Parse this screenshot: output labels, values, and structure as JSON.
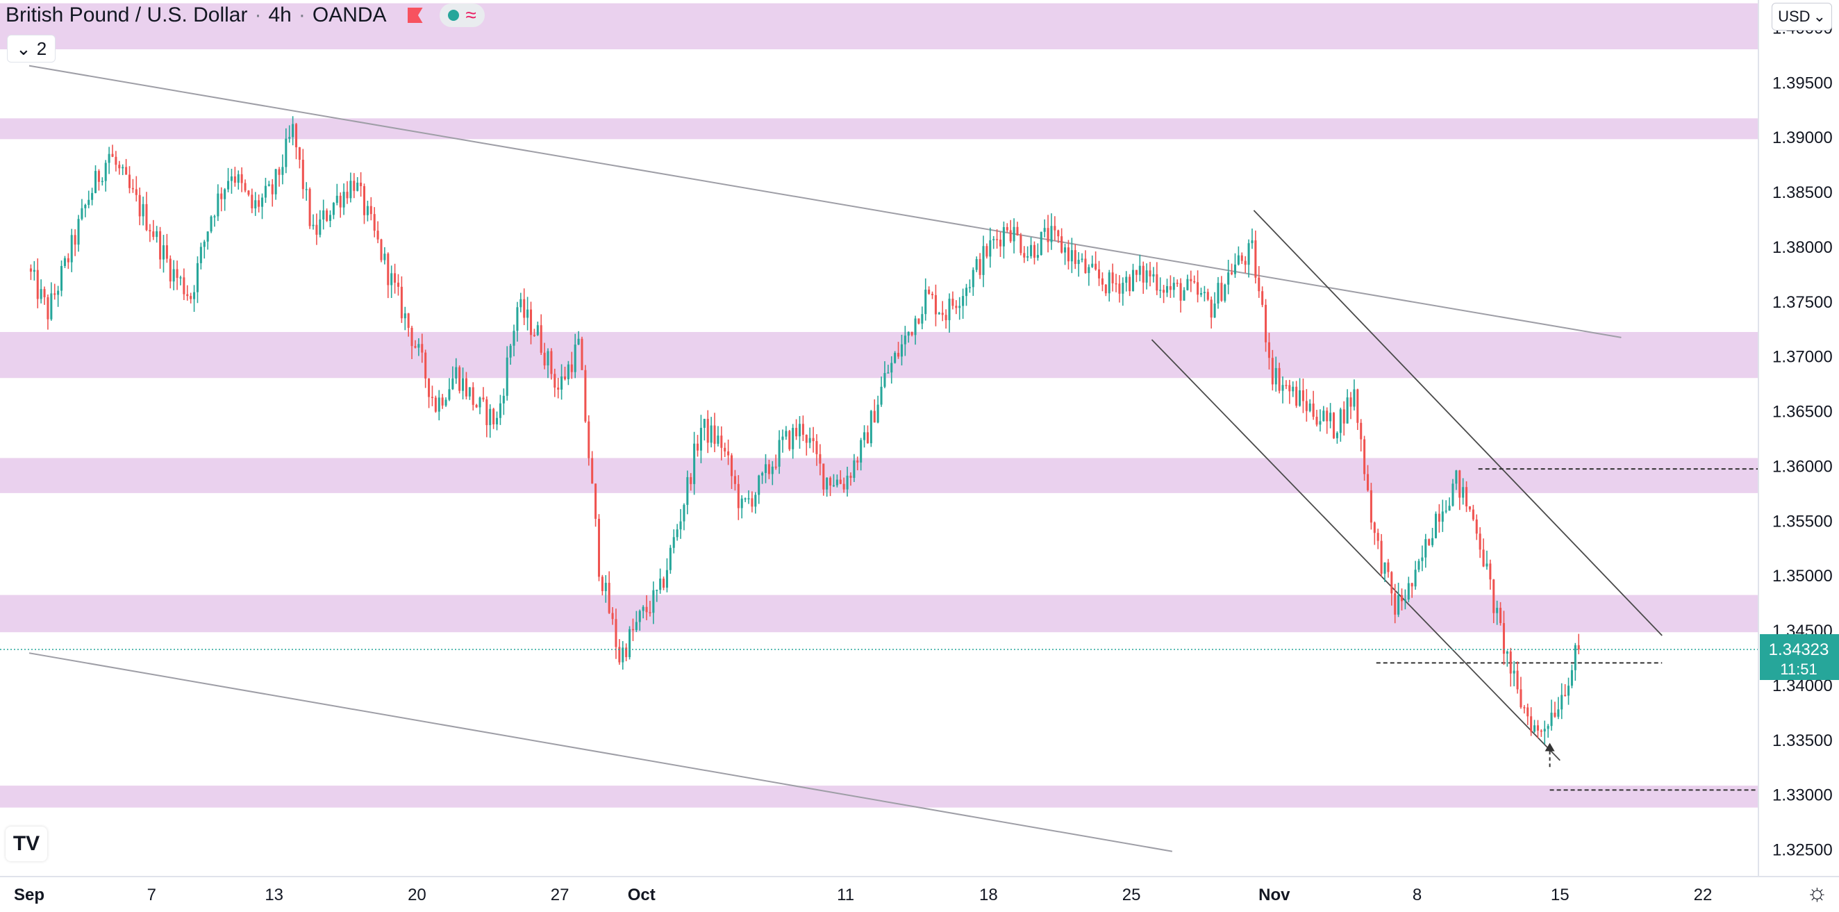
{
  "header": {
    "symbol": "British Pound / U.S. Dollar",
    "interval": "4h",
    "exchange": "OANDA",
    "separator": "·",
    "indicator_count": "2",
    "currency": "USD"
  },
  "colors": {
    "up": "#26a69a",
    "down": "#ef5350",
    "zone": "#e1bee7",
    "trendline": "#9e9ea6",
    "channel": "#4a4a4a",
    "price_line": "#26a69a"
  },
  "icons": [
    "chevron-down-icon",
    "flag-icon",
    "status-dot-icon",
    "wave-icon",
    "tradingview-logo-icon",
    "settings-gear-icon"
  ],
  "chart_data": {
    "type": "candlestick",
    "yaxis": {
      "ylim": [
        1.3225,
        1.4025
      ],
      "ticks": [
        1.4,
        1.395,
        1.39,
        1.385,
        1.38,
        1.375,
        1.37,
        1.365,
        1.36,
        1.355,
        1.35,
        1.345,
        1.34,
        1.335,
        1.33,
        1.325
      ],
      "tick_labels": [
        "1.40000",
        "1.39500",
        "1.39000",
        "1.38500",
        "1.38000",
        "1.37500",
        "1.37000",
        "1.36500",
        "1.36000",
        "1.35500",
        "1.35000",
        "1.34500",
        "1.34000",
        "1.33500",
        "1.33000",
        "1.32500"
      ]
    },
    "xaxis": {
      "xlim": [
        1,
        83
      ],
      "ticks": [
        {
          "day": 1,
          "label": "Sep"
        },
        {
          "day": 7,
          "label": "7"
        },
        {
          "day": 13,
          "label": "13"
        },
        {
          "day": 20,
          "label": "20"
        },
        {
          "day": 27,
          "label": "27"
        },
        {
          "day": 31,
          "label": "Oct"
        },
        {
          "day": 41,
          "label": "11"
        },
        {
          "day": 48,
          "label": "18"
        },
        {
          "day": 55,
          "label": "25"
        },
        {
          "day": 62,
          "label": "Nov"
        },
        {
          "day": 69,
          "label": "8"
        },
        {
          "day": 76,
          "label": "15"
        },
        {
          "day": 83,
          "label": "22"
        }
      ]
    },
    "last_price": {
      "value": 1.34323,
      "label": "1.34323",
      "countdown": "11:51"
    },
    "price_path": [
      [
        1,
        1.378
      ],
      [
        2,
        1.374
      ],
      [
        3,
        1.379
      ],
      [
        4,
        1.3845
      ],
      [
        5,
        1.3885
      ],
      [
        6,
        1.385
      ],
      [
        7,
        1.382
      ],
      [
        8,
        1.378
      ],
      [
        9,
        1.3755
      ],
      [
        10,
        1.383
      ],
      [
        11,
        1.387
      ],
      [
        12,
        1.3835
      ],
      [
        13,
        1.385
      ],
      [
        14,
        1.3905
      ],
      [
        15,
        1.381
      ],
      [
        16,
        1.384
      ],
      [
        17,
        1.386
      ],
      [
        18,
        1.381
      ],
      [
        19,
        1.376
      ],
      [
        20,
        1.371
      ],
      [
        21,
        1.3655
      ],
      [
        22,
        1.3685
      ],
      [
        23,
        1.3655
      ],
      [
        24,
        1.364
      ],
      [
        25,
        1.3745
      ],
      [
        26,
        1.372
      ],
      [
        27,
        1.367
      ],
      [
        28,
        1.371
      ],
      [
        29,
        1.351
      ],
      [
        30,
        1.3425
      ],
      [
        31,
        1.346
      ],
      [
        32,
        1.3485
      ],
      [
        33,
        1.3555
      ],
      [
        34,
        1.3635
      ],
      [
        35,
        1.362
      ],
      [
        36,
        1.356
      ],
      [
        37,
        1.3585
      ],
      [
        38,
        1.362
      ],
      [
        39,
        1.3635
      ],
      [
        40,
        1.359
      ],
      [
        41,
        1.3585
      ],
      [
        42,
        1.362
      ],
      [
        43,
        1.368
      ],
      [
        44,
        1.3715
      ],
      [
        45,
        1.3755
      ],
      [
        46,
        1.374
      ],
      [
        47,
        1.3765
      ],
      [
        48,
        1.3795
      ],
      [
        49,
        1.382
      ],
      [
        50,
        1.3795
      ],
      [
        51,
        1.381
      ],
      [
        52,
        1.3795
      ],
      [
        53,
        1.3775
      ],
      [
        54,
        1.3765
      ],
      [
        55,
        1.377
      ],
      [
        56,
        1.3775
      ],
      [
        57,
        1.376
      ],
      [
        58,
        1.376
      ],
      [
        59,
        1.3745
      ],
      [
        60,
        1.378
      ],
      [
        61,
        1.3795
      ],
      [
        62,
        1.3685
      ],
      [
        63,
        1.3665
      ],
      [
        64,
        1.365
      ],
      [
        65,
        1.3635
      ],
      [
        66,
        1.3665
      ],
      [
        67,
        1.3535
      ],
      [
        68,
        1.347
      ],
      [
        69,
        1.3495
      ],
      [
        70,
        1.3555
      ],
      [
        71,
        1.3585
      ],
      [
        72,
        1.3545
      ],
      [
        73,
        1.346
      ],
      [
        74,
        1.339
      ],
      [
        75,
        1.3355
      ],
      [
        76,
        1.3385
      ],
      [
        77,
        1.3432
      ]
    ],
    "zones": [
      [
        1.398,
        1.4022
      ],
      [
        1.3898,
        1.3917
      ],
      [
        1.368,
        1.3722
      ],
      [
        1.3575,
        1.3607
      ],
      [
        1.3448,
        1.3482
      ],
      [
        1.3288,
        1.3308
      ]
    ],
    "dashed_levels": [
      {
        "x1": 72,
        "x2": 86,
        "y": 1.3597
      },
      {
        "x1": 67,
        "x2": 81,
        "y": 1.342
      },
      {
        "x1": 75.5,
        "x2": 87,
        "y": 1.3304
      }
    ],
    "trendlines": [
      {
        "x1": 1,
        "y1": 1.3965,
        "x2": 79,
        "y2": 1.3717
      },
      {
        "x1": 1,
        "y1": 1.3429,
        "x2": 57,
        "y2": 1.3248
      }
    ],
    "channel_lines": [
      {
        "x1": 61,
        "y1": 1.3833,
        "x2": 81,
        "y2": 1.3445
      },
      {
        "x1": 56,
        "y1": 1.3715,
        "x2": 76,
        "y2": 1.3331
      }
    ],
    "marker": {
      "x": 75.5,
      "y_from": 1.3325,
      "y_to": 1.3347
    }
  }
}
